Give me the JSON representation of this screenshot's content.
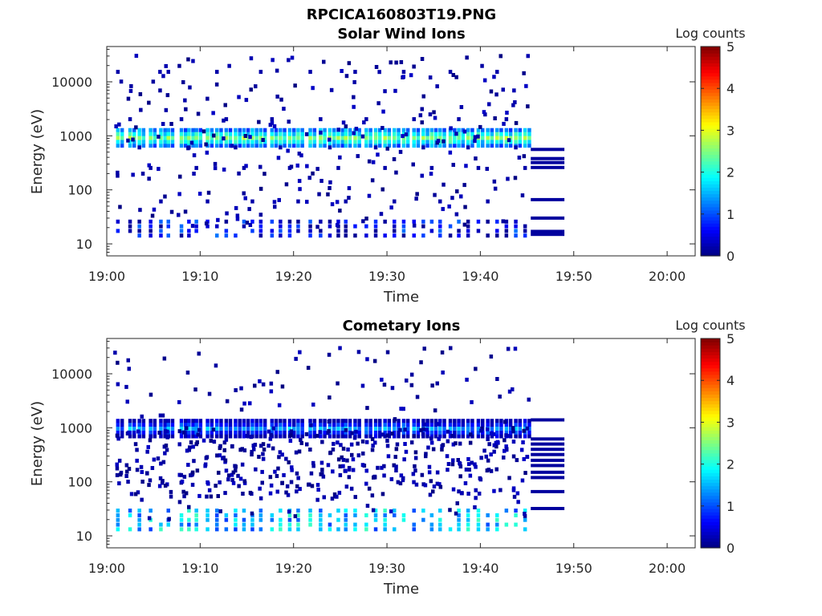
{
  "figure_title": "RPCICA160803T19.PNG",
  "chart_data": [
    {
      "type": "heatmap",
      "title": "Solar Wind Ions",
      "xlabel": "Time",
      "ylabel": "Energy (eV)",
      "y_scale": "log",
      "ylim": [
        6,
        45000
      ],
      "xlim": [
        "19:00",
        "20:03"
      ],
      "x_ticks": [
        "19:00",
        "19:10",
        "19:20",
        "19:30",
        "19:40",
        "19:50",
        "20:00"
      ],
      "y_ticks": [
        "10",
        "100",
        "1000",
        "10000"
      ],
      "colorbar": {
        "label": "Log counts",
        "ticks": [
          "0",
          "1",
          "2",
          "3",
          "4",
          "5"
        ],
        "range": [
          0,
          5
        ],
        "colormap": "jet"
      },
      "grid": false,
      "sweep_minutes": [
        1.0,
        2.3,
        3.3,
        4.5,
        5.6,
        6.4,
        7.8,
        8.6,
        9.4,
        10.6,
        11.6,
        12.6,
        13.6,
        14.5,
        15.4,
        16.3,
        17.5,
        18.4,
        19.4,
        20.3,
        21.6,
        22.7,
        23.7,
        24.6,
        25.4,
        26.4,
        27.6,
        28.6,
        29.6,
        30.6,
        31.6,
        32.7,
        33.7,
        34.6,
        35.5,
        36.6,
        37.5,
        38.5,
        39.6,
        40.6,
        41.6,
        42.6,
        43.6,
        44.6
      ],
      "peak_energy_ev": 900,
      "peak_log_counts": 2.9,
      "low_energy_band_ev": [
        14,
        28
      ],
      "low_energy_log_counts": 1.2,
      "data_end_time": "19:49",
      "sparse_level_ev": [
        15000,
        2000,
        600,
        250,
        60
      ]
    },
    {
      "type": "heatmap",
      "title": "Cometary Ions",
      "xlabel": "Time",
      "ylabel": "Energy (eV)",
      "y_scale": "log",
      "ylim": [
        6,
        45000
      ],
      "xlim": [
        "19:00",
        "20:03"
      ],
      "x_ticks": [
        "19:00",
        "19:10",
        "19:20",
        "19:30",
        "19:40",
        "19:50",
        "20:00"
      ],
      "y_ticks": [
        "10",
        "100",
        "1000",
        "10000"
      ],
      "colorbar": {
        "label": "Log counts",
        "ticks": [
          "0",
          "1",
          "2",
          "3",
          "4",
          "5"
        ],
        "range": [
          0,
          5
        ],
        "colormap": "jet"
      },
      "grid": false,
      "sweep_minutes": [
        1.0,
        2.3,
        3.3,
        4.5,
        5.6,
        6.4,
        7.8,
        8.6,
        9.4,
        10.6,
        11.6,
        12.6,
        13.6,
        14.5,
        15.4,
        16.3,
        17.5,
        18.4,
        19.4,
        20.3,
        21.6,
        22.7,
        23.7,
        24.6,
        25.4,
        26.4,
        27.6,
        28.6,
        29.6,
        30.6,
        31.6,
        32.7,
        33.7,
        34.6,
        35.5,
        36.6,
        37.5,
        38.5,
        39.6,
        40.6,
        41.6,
        42.6,
        43.6,
        44.6
      ],
      "peak_energy_ev": 950,
      "peak_log_counts": 1.8,
      "low_energy_band_ev": [
        13,
        32
      ],
      "low_energy_log_counts": 2.2,
      "broad_band_ev": [
        50,
        1000
      ],
      "data_end_time": "19:49"
    }
  ]
}
